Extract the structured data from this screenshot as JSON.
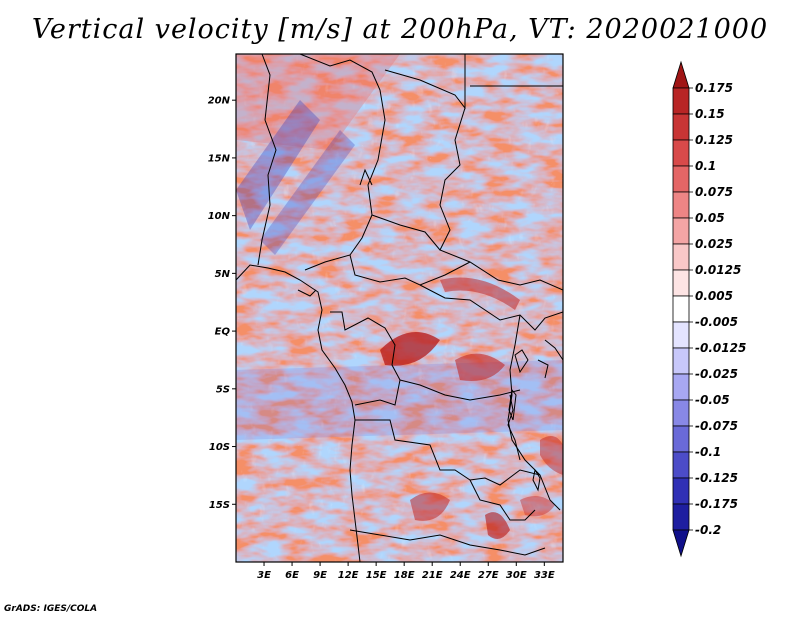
{
  "title": "Vertical velocity [m/s] at 200hPa, VT: 2020021000",
  "footer": "GrADS: IGES/COLA",
  "map": {
    "variable": "Vertical velocity",
    "units": "m/s",
    "level": "200hPa",
    "valid_time": "2020021000",
    "lat_labels": [
      "20N",
      "15N",
      "10N",
      "5N",
      "EQ",
      "5S",
      "10S",
      "15S"
    ],
    "lat_values": [
      20,
      15,
      10,
      5,
      0,
      -5,
      -10,
      -15
    ],
    "lon_labels": [
      "3E",
      "6E",
      "9E",
      "12E",
      "15E",
      "18E",
      "21E",
      "24E",
      "27E",
      "30E",
      "33E"
    ],
    "lon_values": [
      3,
      6,
      9,
      12,
      15,
      18,
      21,
      24,
      27,
      30,
      33
    ],
    "lon_range": [
      0,
      35
    ],
    "lat_range": [
      -20,
      24
    ]
  },
  "colorbar": {
    "levels": [
      "0.175",
      "0.15",
      "0.125",
      "0.1",
      "0.075",
      "0.05",
      "0.025",
      "0.0125",
      "0.005",
      "-0.005",
      "-0.0125",
      "-0.025",
      "-0.05",
      "-0.075",
      "-0.1",
      "-0.125",
      "-0.175",
      "-0.2"
    ],
    "colors": [
      "#a01515",
      "#b82525",
      "#c83535",
      "#d84a4a",
      "#e46666",
      "#ee8585",
      "#f4a5a5",
      "#f9c8c8",
      "#fde4e4",
      "#ffffff",
      "#e4e4ff",
      "#c8c8fa",
      "#a8a8f2",
      "#8888e6",
      "#6a6ad8",
      "#4c4cc8",
      "#3030b5",
      "#1e1ea0",
      "#10108a"
    ]
  }
}
